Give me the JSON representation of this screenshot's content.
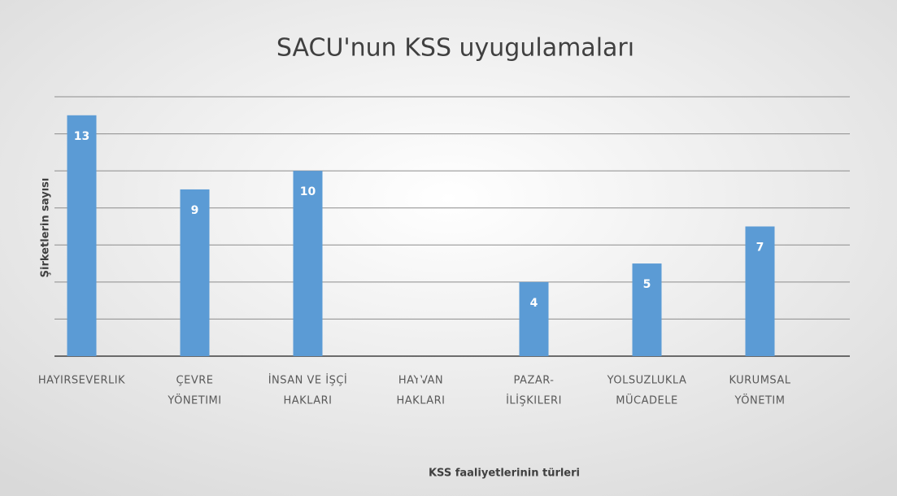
{
  "chart_data": {
    "type": "bar",
    "title": "SACU'nun KSS uyugulamaları",
    "y_label": "Şirketlerin sayısı",
    "x_label": "KSS faaliyetlerinin türleri",
    "categories": [
      [
        "HAYIRSEVERLIK"
      ],
      [
        "ÇEVRE",
        "YÖNETIMI"
      ],
      [
        "İNSAN VE İŞÇİ",
        "HAKLARI"
      ],
      [
        "HAYVAN",
        "HAKLARI"
      ],
      [
        "PAZAR-",
        "İLİŞKILERI"
      ],
      [
        "YOLSUZLUKLA",
        "MÜCADELE"
      ],
      [
        "KURUMSAL",
        "YÖNETIM"
      ]
    ],
    "values": [
      13,
      9,
      10,
      0,
      4,
      5,
      7
    ],
    "color": "#5b9bd5",
    "ylim": [
      0,
      14
    ],
    "yticks": [
      0,
      2,
      4,
      6,
      8,
      10,
      12,
      14
    ],
    "grid": true
  }
}
